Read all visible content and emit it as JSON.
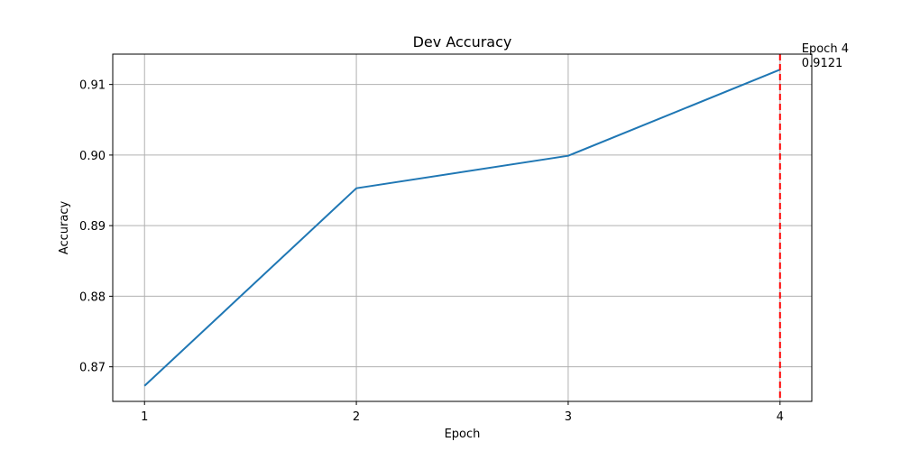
{
  "chart_data": {
    "type": "line",
    "title": "Dev Accuracy",
    "xlabel": "Epoch",
    "ylabel": "Accuracy",
    "x": [
      1,
      2,
      3,
      4
    ],
    "series": [
      {
        "values": [
          0.8673,
          0.8953,
          0.8999,
          0.9121
        ],
        "color": "#1f77b4"
      }
    ],
    "xlim": [
      0.85,
      4.15
    ],
    "ylim": [
      0.8651,
      0.9143
    ],
    "xticks": [
      1,
      2,
      3,
      4
    ],
    "xtick_labels": [
      "1",
      "2",
      "3",
      "4"
    ],
    "yticks": [
      0.87,
      0.88,
      0.89,
      0.9,
      0.91
    ],
    "ytick_labels": [
      "0.87",
      "0.88",
      "0.89",
      "0.90",
      "0.91"
    ],
    "grid": true,
    "marker_line": {
      "x": 4,
      "style": "dashed",
      "color": "#ff0000"
    },
    "annotation": {
      "lines": [
        "Epoch 4",
        "0.9121"
      ]
    }
  }
}
